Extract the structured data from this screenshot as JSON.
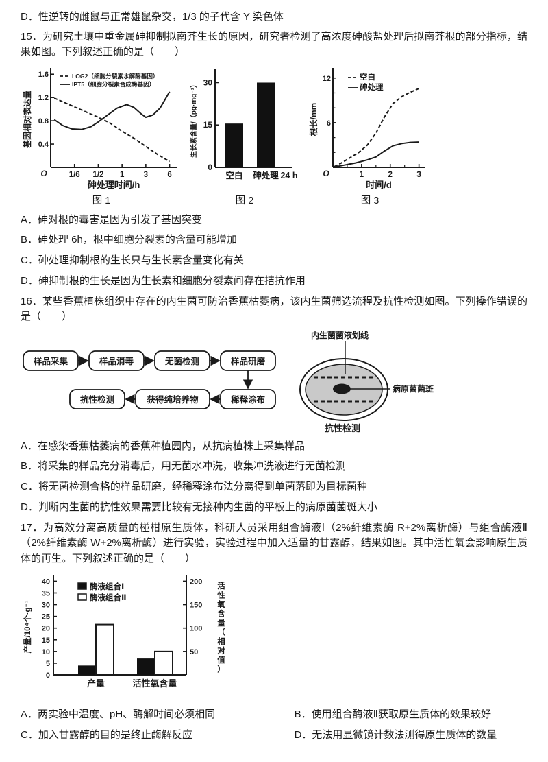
{
  "colors": {
    "ink": "#1a1a1a",
    "paper": "#ffffff",
    "dish_gray": "#c9c9c9",
    "bar_black": "#111111"
  },
  "prev": {
    "option_d": "D．性逆转的雌鼠与正常雄鼠杂交，1/3 的子代含 Y 染色体"
  },
  "q15": {
    "stem": "15．为研究土壤中重金属砷抑制拟南芥生长的原因，研究者检测了高浓度砷酸盐处理后拟南芥根的部分指标，结果如图。下列叙述正确的是（　　）",
    "captions": [
      "图 1",
      "图 2",
      "图 3"
    ],
    "options": [
      "A．砷对根的毒害是因为引发了基因突变",
      "B．砷处理 6h，根中细胞分裂素的含量可能增加",
      "C．砷处理抑制根的生长只与生长素含量变化有关",
      "D．砷抑制根的生长是因为生长素和细胞分裂素间存在拮抗作用"
    ]
  },
  "q16": {
    "stem": "16．某些香蕉植株组织中存在的内生菌可防治香蕉枯萎病，该内生菌筛选流程及抗性检测如图。下列操作错误的是（　　）",
    "flow": {
      "steps": [
        "样品采集",
        "样品消毒",
        "无菌检测",
        "样品研磨",
        "稀释涂布",
        "获得纯培养物",
        "抗性检测"
      ]
    },
    "petri": {
      "streak_label": "内生菌菌液划线",
      "colony_label": "病原菌菌斑",
      "caption": "抗性检测"
    },
    "options": [
      "A．在感染香蕉枯萎病的香蕉种植园内，从抗病植株上采集样品",
      "B．将采集的样品充分消毒后，用无菌水冲洗，收集冲洗液进行无菌检测",
      "C．将无菌检测合格的样品研磨，经稀释涂布法分离得到单菌落即为目标菌种",
      "D．判断内生菌的抗性效果需要比较有无接种内生菌的平板上的病原菌菌斑大小"
    ]
  },
  "q17": {
    "stem": "17．为高效分离高质量的椪柑原生质体，科研人员采用组合酶液Ⅰ（2%纤维素酶 R+2%离析酶）与组合酶液Ⅱ（2%纤维素酶 W+2%离析酶）进行实验，实验过程中加入适量的甘露醇，结果如图。其中活性氧会影响原生质体的再生。下列叙述正确的是（　　）",
    "options": [
      "A．两实验中温度、pH、酶解时间必须相同",
      "B．使用组合酶液Ⅱ获取原生质体的效果较好",
      "C．加入甘露醇的目的是终止酶解反应",
      "D．无法用显微镜计数法测得原生质体的数量"
    ]
  },
  "chart_data": [
    {
      "id": "fig1",
      "type": "line",
      "caption": "图 1",
      "ylabel": "基因相对表达量",
      "xlabel": "砷处理时间/h",
      "origin": "O",
      "xlim": [
        0,
        5.3
      ],
      "ylim": [
        0,
        1.65
      ],
      "xticks": [
        {
          "pos": 1,
          "label": "1/6"
        },
        {
          "pos": 2,
          "label": "1/2"
        },
        {
          "pos": 3,
          "label": "1"
        },
        {
          "pos": 4,
          "label": "3"
        },
        {
          "pos": 5,
          "label": "6"
        }
      ],
      "yticks": [
        {
          "pos": 0.4,
          "label": "0.4"
        },
        {
          "pos": 0.8,
          "label": "0.8"
        },
        {
          "pos": 1.2,
          "label": "1.2"
        },
        {
          "pos": 1.6,
          "label": "1.6"
        }
      ],
      "legend": [
        {
          "name": "LOG2",
          "desc": "（细胞分裂素水解酶基因）",
          "style": "dashed"
        },
        {
          "name": "IPT5",
          "desc": "（细胞分裂素合成酶基因）",
          "style": "solid"
        }
      ],
      "series": [
        {
          "name": "LOG2",
          "style": "dashed",
          "points": [
            [
              0.15,
              1.19
            ],
            [
              1,
              1.04
            ],
            [
              2,
              0.86
            ],
            [
              2.5,
              0.76
            ],
            [
              3,
              0.62
            ],
            [
              3.5,
              0.5
            ],
            [
              4,
              0.36
            ],
            [
              4.5,
              0.22
            ],
            [
              5,
              0.1
            ]
          ]
        },
        {
          "name": "IPT5",
          "style": "solid",
          "points": [
            [
              0.15,
              0.82
            ],
            [
              0.5,
              0.72
            ],
            [
              0.9,
              0.66
            ],
            [
              1.3,
              0.65
            ],
            [
              1.7,
              0.7
            ],
            [
              2,
              0.78
            ],
            [
              2.4,
              0.9
            ],
            [
              2.8,
              1.02
            ],
            [
              3.2,
              1.08
            ],
            [
              3.5,
              1.03
            ],
            [
              3.8,
              0.92
            ],
            [
              4,
              0.86
            ],
            [
              4.3,
              0.9
            ],
            [
              4.6,
              1.02
            ],
            [
              5,
              1.3
            ]
          ]
        }
      ]
    },
    {
      "id": "fig2",
      "type": "bar",
      "caption": "图 2",
      "ylabel": "生长素含量/（pg·mg⁻¹）",
      "categories": [
        "空白",
        "砷处理"
      ],
      "values": [
        15.5,
        30
      ],
      "x_extra": "24 h",
      "ylim": [
        0,
        34
      ],
      "yticks": [
        0,
        15,
        30
      ]
    },
    {
      "id": "fig3",
      "type": "line",
      "caption": "图 3",
      "ylabel": "根长/mm",
      "xlabel": "时间/d",
      "origin": "O",
      "xlim": [
        0,
        3.2
      ],
      "ylim": [
        0,
        12.9
      ],
      "xticks": [
        {
          "pos": 1,
          "label": "1"
        },
        {
          "pos": 2,
          "label": "2"
        },
        {
          "pos": 3,
          "label": "3"
        }
      ],
      "yticks": [
        {
          "pos": 6,
          "label": "6"
        },
        {
          "pos": 12,
          "label": "12"
        }
      ],
      "yminor": [
        2,
        4,
        8,
        10
      ],
      "xminor": [
        0.5,
        1.5,
        2.5
      ],
      "legend": [
        {
          "name": "空白",
          "style": "dashed"
        },
        {
          "name": "砷处理",
          "style": "solid"
        }
      ],
      "series": [
        {
          "name": "空白",
          "style": "dashed",
          "points": [
            [
              0.05,
              0.1
            ],
            [
              0.3,
              0.6
            ],
            [
              0.6,
              1.3
            ],
            [
              0.9,
              2
            ],
            [
              1.2,
              3
            ],
            [
              1.5,
              4.6
            ],
            [
              1.8,
              6.8
            ],
            [
              2.1,
              8.6
            ],
            [
              2.4,
              9.5
            ],
            [
              2.7,
              10.1
            ],
            [
              3,
              10.6
            ]
          ]
        },
        {
          "name": "砷处理",
          "style": "solid",
          "points": [
            [
              0.05,
              0.05
            ],
            [
              0.4,
              0.3
            ],
            [
              0.8,
              0.6
            ],
            [
              1.2,
              1
            ],
            [
              1.5,
              1.4
            ],
            [
              1.8,
              2.2
            ],
            [
              2.1,
              2.9
            ],
            [
              2.4,
              3.2
            ],
            [
              2.7,
              3.35
            ],
            [
              3,
              3.4
            ]
          ]
        }
      ]
    },
    {
      "id": "fig17",
      "type": "grouped_bar",
      "ylabel_left": "产量/10⁴个·g⁻¹",
      "right_axis": {
        "label": "活性氧含量（相对值）",
        "ticks": [
          50,
          100,
          150,
          200
        ],
        "left_equiv": 0.2
      },
      "categories": [
        "产量",
        "活性氧含量"
      ],
      "series": [
        {
          "name": "酶液组合Ⅰ",
          "fill": "#111111",
          "values": [
            4,
            7
          ]
        },
        {
          "name": "酶液组合Ⅱ",
          "fill": "#ffffff",
          "values": [
            21.5,
            10
          ]
        }
      ],
      "ylim": [
        0,
        41
      ],
      "yticks": [
        0,
        5,
        10,
        15,
        20,
        25,
        30,
        35,
        40
      ]
    }
  ]
}
